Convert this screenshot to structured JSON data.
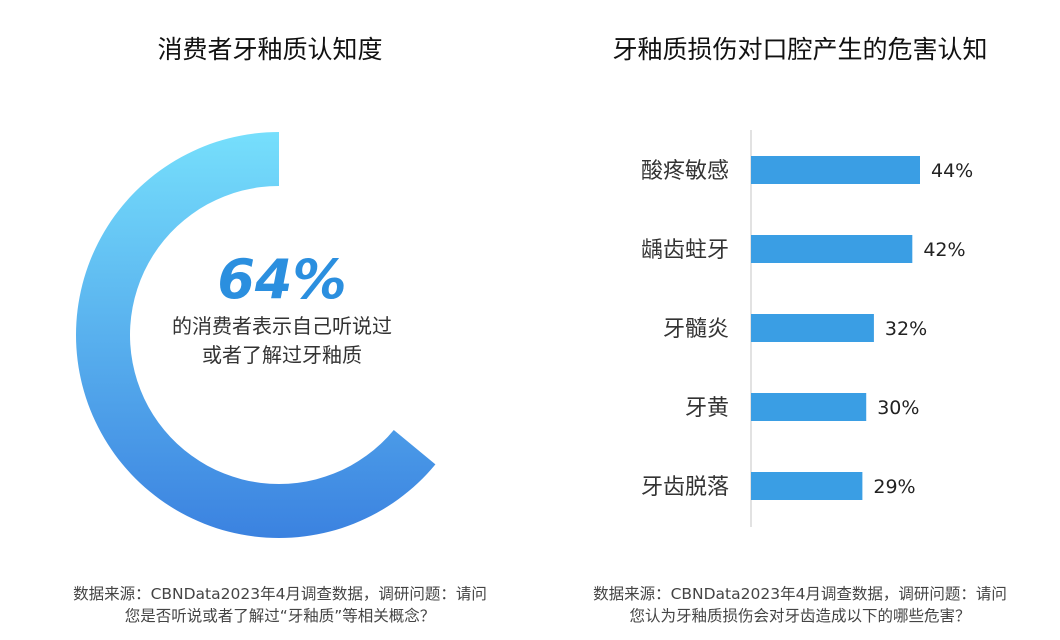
{
  "chart_data": [
    {
      "type": "pie",
      "title": "消费者牙釉质认知度",
      "value_percent": 64,
      "center_value_label": "64%",
      "center_text_line1": "的消费者表示自己听说过",
      "center_text_line2": "或者了解过牙釉质",
      "colors": {
        "gradient_start": "#76dffc",
        "gradient_end": "#3b82e0"
      },
      "source_line1": "数据来源：CBNData2023年4月调查数据，调研问题：请问",
      "source_line2": "您是否听说或者了解过“牙釉质”等相关概念？"
    },
    {
      "type": "bar",
      "orientation": "horizontal",
      "title": "牙釉质损伤对口腔产生的危害认知",
      "categories": [
        "酸疼敏感",
        "龋齿蛀牙",
        "牙髓炎",
        "牙黄",
        "牙齿脱落"
      ],
      "values": [
        44,
        42,
        32,
        30,
        29
      ],
      "value_labels": [
        "44%",
        "42%",
        "32%",
        "30%",
        "29%"
      ],
      "color": "#3a9ee4",
      "source_line1": "数据来源：CBNData2023年4月调查数据，调研问题：请问",
      "source_line2": "您认为牙釉质损伤会对牙齿造成以下的哪些危害？"
    }
  ]
}
